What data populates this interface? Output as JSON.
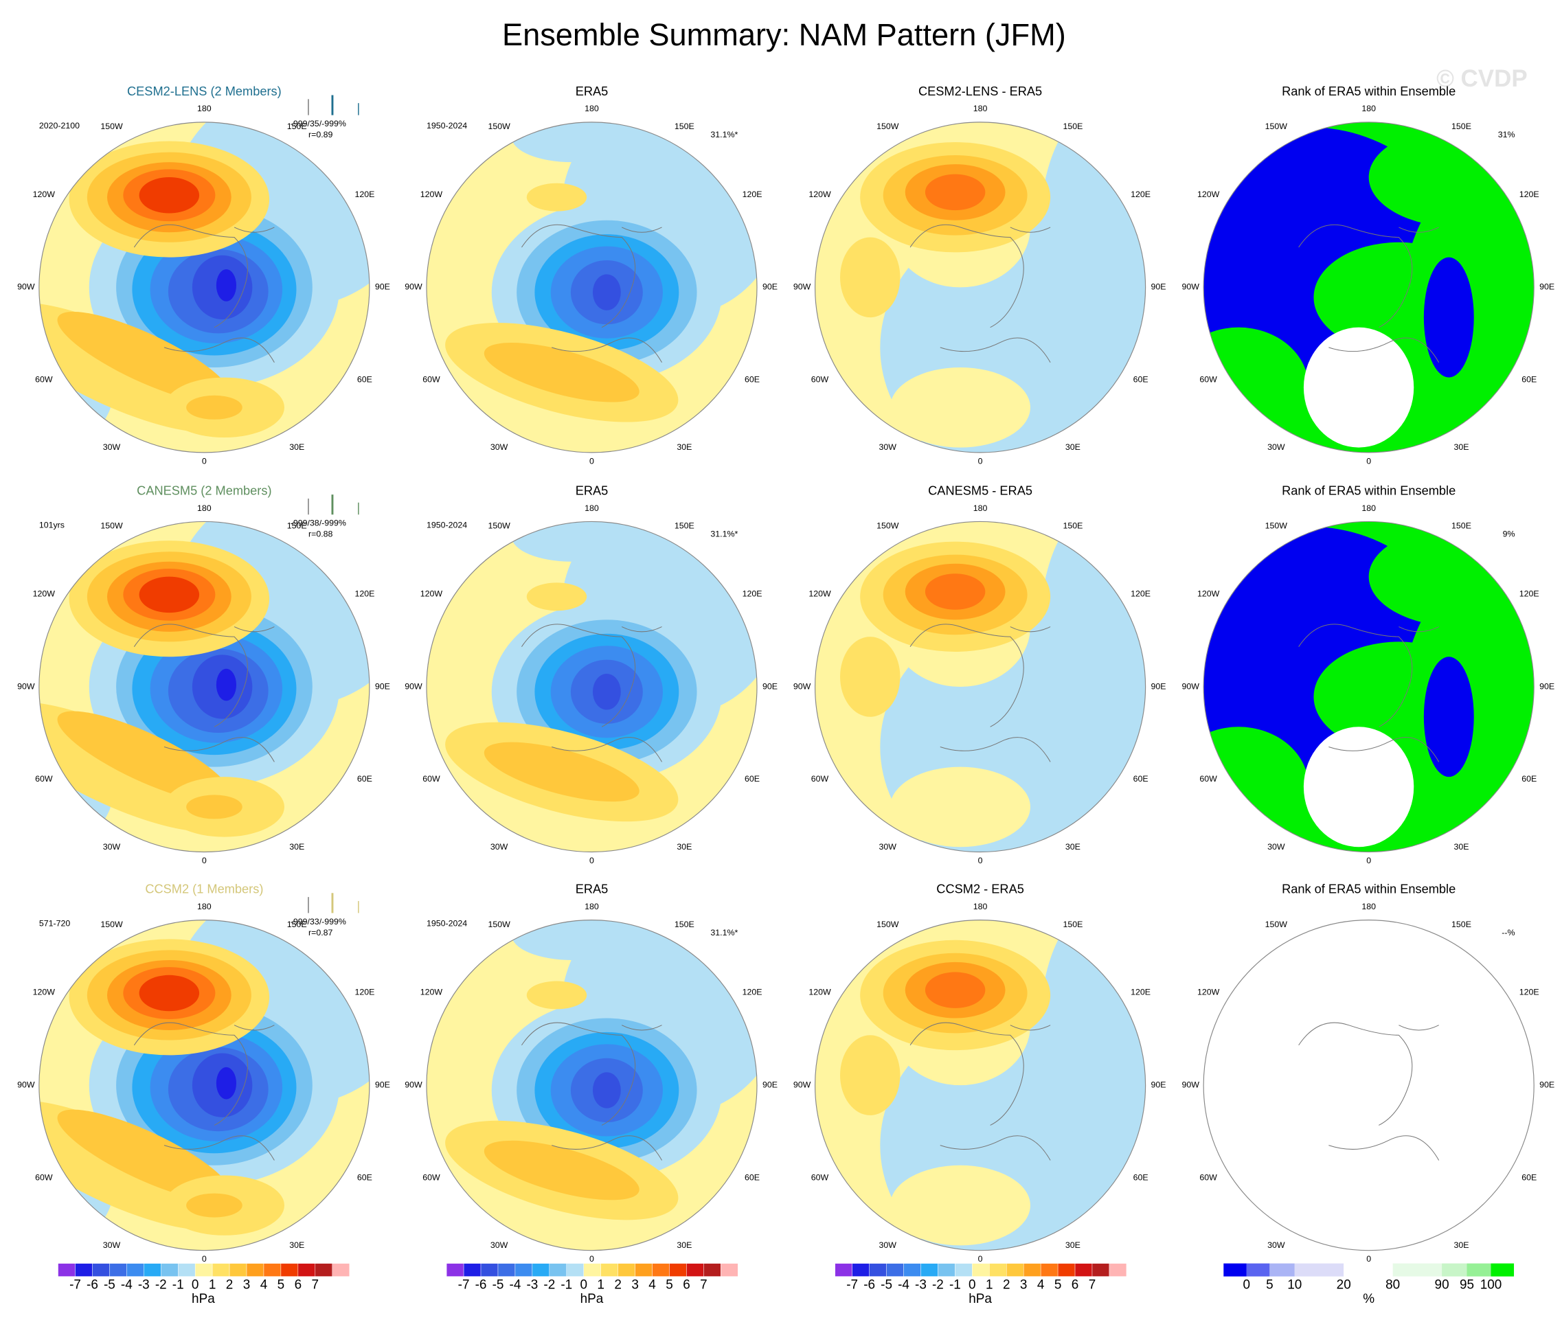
{
  "title": "Ensemble Summary: NAM Pattern (JFM)",
  "watermark": "© CVDP",
  "lon_labels": [
    "180",
    "150E",
    "120E",
    "90E",
    "60E",
    "30E",
    "0",
    "30W",
    "60W",
    "90W",
    "120W",
    "150W"
  ],
  "rows": [
    {
      "panels": [
        {
          "title": "CESM2-LENS (2 Members)",
          "title_color": "#1f6f8f",
          "period": "2020-2100",
          "stats": "-999/35/-999%",
          "corr": "r=0.89"
        },
        {
          "title": "ERA5",
          "period": "1950-2024",
          "pct": "31.1%*"
        },
        {
          "title": "CESM2-LENS - ERA5"
        },
        {
          "title": "Rank of ERA5 within Ensemble",
          "pct": "31%"
        }
      ]
    },
    {
      "panels": [
        {
          "title": "CANESM5 (2 Members)",
          "title_color": "#5f8f5f",
          "period": "101yrs",
          "stats": "-999/38/-999%",
          "corr": "r=0.88"
        },
        {
          "title": "ERA5",
          "period": "1950-2024",
          "pct": "31.1%*"
        },
        {
          "title": "CANESM5 - ERA5"
        },
        {
          "title": "Rank of ERA5 within Ensemble",
          "pct": "9%"
        }
      ]
    },
    {
      "panels": [
        {
          "title": "CCSM2 (1 Members)",
          "title_color": "#d4c77a",
          "period": "571-720",
          "stats": "-999/33/-999%",
          "corr": "r=0.87"
        },
        {
          "title": "ERA5",
          "period": "1950-2024",
          "pct": "31.1%*"
        },
        {
          "title": "CCSM2 - ERA5"
        },
        {
          "title": "Rank of ERA5 within Ensemble",
          "pct": "--%"
        }
      ]
    }
  ],
  "colorbars": {
    "anomaly": {
      "ticks": [
        -7,
        -6,
        -5,
        -4,
        -3,
        -2,
        -1,
        0,
        1,
        2,
        3,
        4,
        5,
        6,
        7
      ],
      "unit": "hPa",
      "colors": [
        "#8c32e6",
        "#1e1ee6",
        "#3450e0",
        "#3c6ee6",
        "#3c8cf0",
        "#28aaf5",
        "#78c3f0",
        "#b4e0f5",
        "#fff5a0",
        "#ffe164",
        "#ffc83c",
        "#ffa01e",
        "#ff7814",
        "#f03c00",
        "#d21414",
        "#b41e1e",
        "#ffb4b4"
      ]
    },
    "rank": {
      "ticks": [
        0,
        5,
        10,
        20,
        80,
        90,
        95,
        100
      ],
      "unit": "%",
      "colors": [
        "#0000f0",
        "#5a64f0",
        "#aab4f5",
        "#dcdcf8",
        "#ffffff",
        "#e6fae6",
        "#c8f5c8",
        "#96f096",
        "#00f000"
      ]
    }
  }
}
